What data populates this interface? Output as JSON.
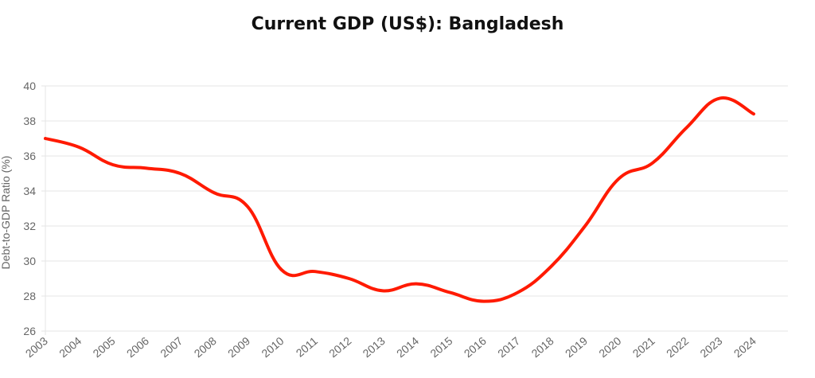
{
  "chart_data": {
    "type": "line",
    "title": "Current GDP (US$): Bangladesh",
    "xlabel": "",
    "ylabel": "Debt-to-GDP Ratio (%)",
    "categories": [
      "2003",
      "2004",
      "2005",
      "2006",
      "2007",
      "2008",
      "2009",
      "2010",
      "2011",
      "2012",
      "2013",
      "2014",
      "2015",
      "2016",
      "2017",
      "2018",
      "2019",
      "2020",
      "2021",
      "2022",
      "2023",
      "2024"
    ],
    "series": [
      {
        "name": "Debt-to-GDP Ratio (%)",
        "color": "#ff1a00",
        "values": [
          37.0,
          36.5,
          35.5,
          35.3,
          35.0,
          33.9,
          33.1,
          29.5,
          29.4,
          29.0,
          28.3,
          28.7,
          28.2,
          27.7,
          28.2,
          29.7,
          32.0,
          34.7,
          35.6,
          37.6,
          39.3,
          38.4
        ]
      }
    ],
    "ylim": [
      26,
      40
    ],
    "yticks": [
      26,
      28,
      30,
      32,
      34,
      36,
      38,
      40
    ],
    "grid": true,
    "legend": "none"
  }
}
